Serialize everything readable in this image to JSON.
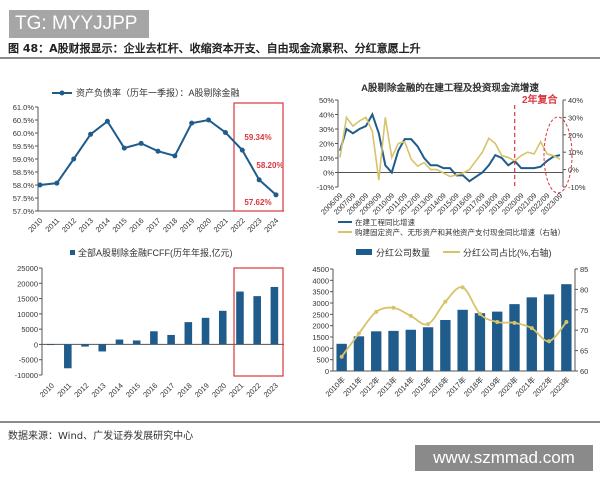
{
  "header": {
    "tag": "TG: MYYJJPP",
    "figure_title": "图 48：A股财报显示：企业去杠杆、收缩资本开支、自由现金流累积、分红意愿上升",
    "source": "数据来源：Wind、广发证券发展研究中心",
    "watermark": "www.szmmad.com"
  },
  "chart_data": [
    {
      "type": "line",
      "legend": "资产负债率（历年一季报）：A股剔除金融",
      "categories": [
        "2010",
        "2011",
        "2012",
        "2013",
        "2014",
        "2015",
        "2016",
        "2017",
        "2018",
        "2019",
        "2020",
        "2021",
        "2022",
        "2023",
        "2024"
      ],
      "values": [
        58.0,
        58.07,
        59.0,
        59.95,
        60.45,
        59.42,
        59.6,
        59.3,
        59.12,
        60.38,
        60.5,
        60.02,
        59.34,
        58.2,
        57.62
      ],
      "yticks": [
        "57.0%",
        "57.5%",
        "58.0%",
        "58.5%",
        "59.0%",
        "59.5%",
        "60.0%",
        "60.5%",
        "61.0%"
      ],
      "ylim": [
        57.0,
        61.0
      ],
      "annotations": [
        "59.34%",
        "58.20%",
        "57.62%"
      ],
      "highlight": [
        "2022",
        "2024"
      ],
      "color": "#1f5c8b",
      "highlight_color": "#d9363e"
    },
    {
      "type": "line",
      "title": "A股剔除金融的在建工程及投资现金流增速",
      "x": [
        "2006/09",
        "2007/03",
        "2007/09",
        "2008/03",
        "2008/09",
        "2009/03",
        "2009/09",
        "2010/03",
        "2010/09",
        "2011/03",
        "2011/09",
        "2012/03",
        "2012/09",
        "2013/03",
        "2013/09",
        "2014/03",
        "2014/09",
        "2015/03",
        "2015/09",
        "2016/03",
        "2016/09",
        "2017/03",
        "2017/09",
        "2018/03",
        "2018/09",
        "2019/03",
        "2019/09",
        "2020/03",
        "2020/09",
        "2021/03",
        "2021/09",
        "2022/03",
        "2022/09",
        "2023/03",
        "2023/09"
      ],
      "xticks": [
        "2006/09",
        "2007/09",
        "2008/09",
        "2009/09",
        "2010/09",
        "2011/09",
        "2012/09",
        "2013/09",
        "2014/09",
        "2015/09",
        "2016/09",
        "2017/09",
        "2018/09",
        "2019/09",
        "2020/09",
        "2021/09",
        "2022/09",
        "2023/09"
      ],
      "series": [
        {
          "name": "在建工程同比增速",
          "axis": "left",
          "color": "#1f5c8b",
          "values": [
            15,
            30,
            27,
            30,
            32,
            40,
            27,
            5,
            0,
            15,
            23,
            23,
            18,
            10,
            5,
            5,
            3,
            3,
            -2,
            -2,
            -6,
            -3,
            0,
            5,
            12,
            10,
            5,
            8,
            3,
            3,
            3,
            4,
            8,
            11,
            12
          ]
        },
        {
          "name": "购建固定资产、无形资产和其他资产支付现金同比增速（右轴）",
          "axis": "right",
          "color": "#d8c36a",
          "values": [
            7,
            30,
            25,
            28,
            30,
            22,
            -6,
            30,
            7,
            15,
            16,
            6,
            2,
            4,
            0,
            0,
            -2,
            -4,
            -3,
            -2,
            0,
            5,
            10,
            18,
            15,
            8,
            7,
            5,
            8,
            10,
            9,
            16,
            9,
            8,
            6
          ]
        }
      ],
      "yticks_left": [
        "-10%",
        "0%",
        "10%",
        "20%",
        "30%",
        "40%",
        "50%"
      ],
      "ylim_left": [
        -10,
        50
      ],
      "yticks_right": [
        "-10%",
        "0%",
        "10%",
        "20%",
        "30%",
        "40%"
      ],
      "ylim_right": [
        -10,
        40
      ],
      "annotation": "2年复合",
      "marker_line_at": "2020/03"
    },
    {
      "type": "bar",
      "legend": "全部A股剔除金融FCFF(历年年报,亿元)",
      "categories": [
        "2010",
        "2011",
        "2012",
        "2013",
        "2014",
        "2015",
        "2016",
        "2017",
        "2018",
        "2019",
        "2020",
        "2021",
        "2022",
        "2023"
      ],
      "values": [
        -200,
        -7800,
        -700,
        -2300,
        1600,
        1300,
        4300,
        3100,
        7300,
        8700,
        11000,
        17300,
        15800,
        18800
      ],
      "yticks": [
        "-10000",
        "-5000",
        "0",
        "5000",
        "10000",
        "15000",
        "20000",
        "25000"
      ],
      "ylim": [
        -10000,
        25000
      ],
      "highlight": [
        "2021",
        "2023"
      ],
      "color": "#1f5c8b"
    },
    {
      "type": "bar+line",
      "categories": [
        "2010年",
        "2011年",
        "2012年",
        "2013年",
        "2014年",
        "2015年",
        "2016年",
        "2017年",
        "2018年",
        "2019年",
        "2020年",
        "2021年",
        "2022年",
        "2023年"
      ],
      "series": [
        {
          "name": "分红公司数量",
          "type": "bar",
          "axis": "left",
          "color": "#1f5c8b",
          "values": [
            1200,
            1530,
            1750,
            1770,
            1820,
            1930,
            2250,
            2700,
            2550,
            2620,
            2950,
            3250,
            3380,
            3830
          ]
        },
        {
          "name": "分红公司占比(%,右轴)",
          "type": "line",
          "axis": "right",
          "color": "#d8c36a",
          "values": [
            63.5,
            69.2,
            74.5,
            75.5,
            73.5,
            71.5,
            77,
            80.5,
            74,
            72,
            71.8,
            70.5,
            67.3,
            72
          ]
        }
      ],
      "yticks_left": [
        "0",
        "500",
        "1000",
        "1500",
        "2000",
        "2500",
        "3000",
        "3500",
        "4000",
        "4500"
      ],
      "ylim_left": [
        0,
        4500
      ],
      "yticks_right": [
        "60",
        "65",
        "70",
        "75",
        "80",
        "85"
      ],
      "ylim_right": [
        60,
        85
      ]
    }
  ]
}
